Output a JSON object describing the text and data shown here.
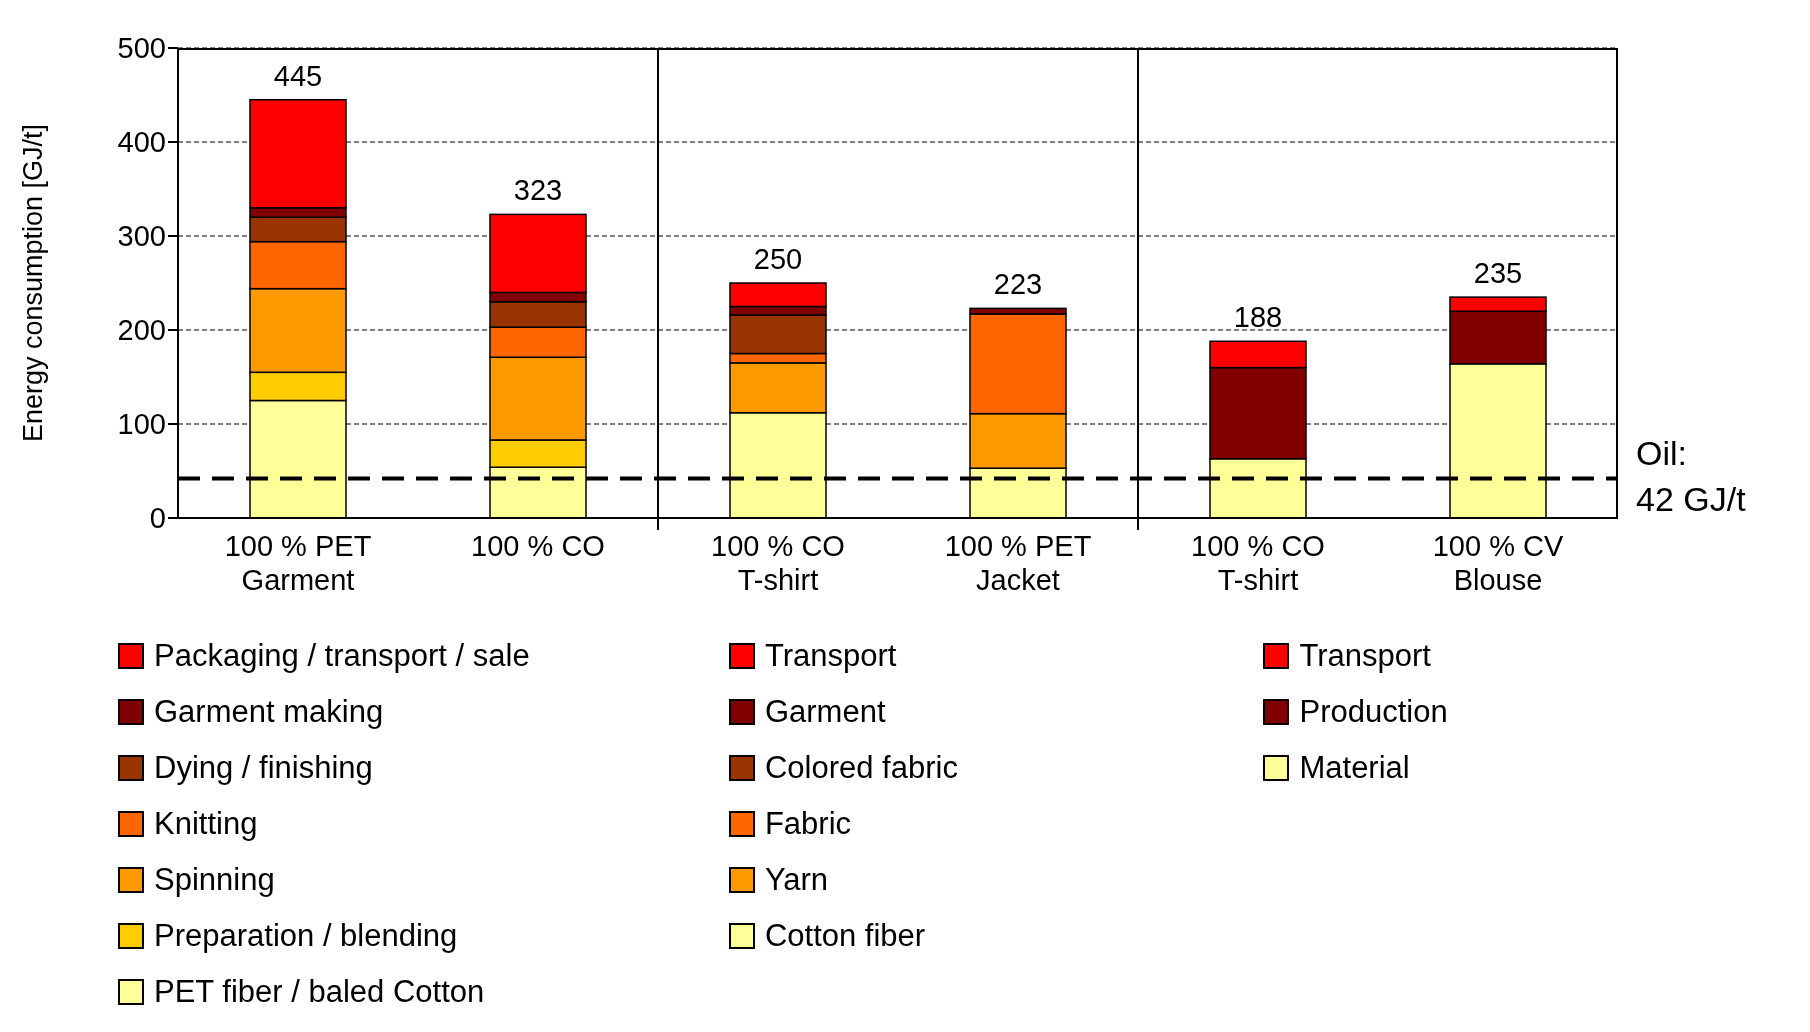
{
  "chart_data": {
    "type": "bar",
    "stacked": true,
    "ylabel": "Energy consumption [GJ/t]",
    "categories": [
      "100 % PET Garment",
      "100 % CO",
      "100 % CO T-shirt",
      "100 % PET Jacket",
      "100 % CO T-shirt",
      "100 % CV Blouse"
    ],
    "series": [
      {
        "name": "PET fiber / baled Cotton",
        "color": "#ffff99",
        "values": [
          125,
          54,
          null,
          null,
          null,
          null
        ]
      },
      {
        "name": "Preparation / blending",
        "color": "#ffcc00",
        "values": [
          30,
          29,
          null,
          null,
          null,
          null
        ]
      },
      {
        "name": "Spinning",
        "color": "#ff9900",
        "values": [
          89,
          88,
          null,
          null,
          null,
          null
        ]
      },
      {
        "name": "Knitting",
        "color": "#ff6600",
        "values": [
          50,
          32,
          null,
          null,
          null,
          null
        ]
      },
      {
        "name": "Dying / finishing",
        "color": "#993300",
        "values": [
          26,
          27,
          null,
          null,
          null,
          null
        ]
      },
      {
        "name": "Garment making",
        "color": "#800000",
        "values": [
          10,
          10,
          null,
          null,
          null,
          null
        ]
      },
      {
        "name": "Packaging / transport / sale",
        "color": "#ff0000",
        "values": [
          115,
          83,
          null,
          null,
          null,
          null
        ]
      },
      {
        "name": "Cotton fiber",
        "color": "#ffff99",
        "values": [
          null,
          null,
          112,
          53,
          null,
          null
        ]
      },
      {
        "name": "Yarn",
        "color": "#ff9900",
        "values": [
          null,
          null,
          53,
          58,
          null,
          null
        ]
      },
      {
        "name": "Fabric",
        "color": "#ff6600",
        "values": [
          null,
          null,
          10,
          106,
          null,
          null
        ]
      },
      {
        "name": "Colored fabric",
        "color": "#993300",
        "values": [
          null,
          null,
          41,
          null,
          null,
          null
        ]
      },
      {
        "name": "Garment",
        "color": "#800000",
        "values": [
          null,
          null,
          9,
          6,
          null,
          null
        ]
      },
      {
        "name": "Transport",
        "color": "#ff0000",
        "values": [
          null,
          null,
          25,
          null,
          null,
          null
        ]
      },
      {
        "name": "Material",
        "color": "#ffff99",
        "values": [
          null,
          null,
          null,
          null,
          63,
          164
        ]
      },
      {
        "name": "Production",
        "color": "#800000",
        "values": [
          null,
          null,
          null,
          null,
          97,
          56
        ]
      },
      {
        "name": "Transport",
        "color": "#ff0000",
        "values": [
          null,
          null,
          null,
          null,
          28,
          15
        ]
      }
    ],
    "totals": [
      "445",
      "323",
      "250",
      "223",
      "188",
      "235"
    ],
    "ylim": [
      0,
      500
    ],
    "yticks": [
      0,
      100,
      200,
      300,
      400,
      500
    ],
    "grid": "y",
    "legend": "bottom",
    "ref_lines": [
      {
        "axis": "y",
        "value": 42,
        "label": "Oil: 42 GJ/t",
        "line_style": "dashed"
      }
    ]
  }
}
